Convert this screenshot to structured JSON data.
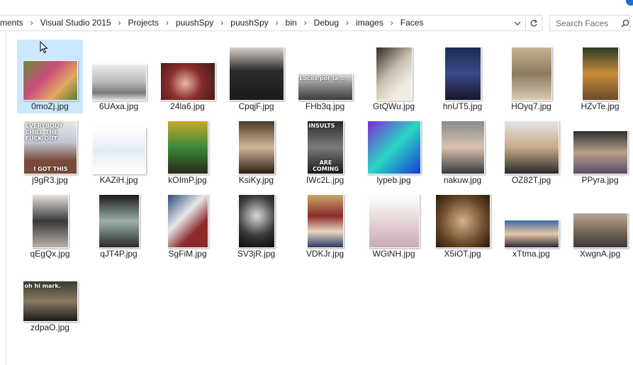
{
  "breadcrumb": [
    "ments",
    "Visual Studio 2015",
    "Projects",
    "puushSpy",
    "puushSpy",
    "bin",
    "Debug",
    "images",
    "Faces"
  ],
  "search": {
    "placeholder": "Search Faces"
  },
  "icons": {
    "separator": "chevron-right-icon",
    "dropdown": "chevron-down-icon",
    "refresh": "refresh-icon",
    "search": "search-icon",
    "cursor": "mouse-pointer-icon"
  },
  "colors": {
    "selection": "#cce8ff",
    "help_badge": "#1a6fd3"
  },
  "files": [
    {
      "name": "0moZj.jpg",
      "selected": true
    },
    {
      "name": "6UAxa.jpg"
    },
    {
      "name": "24la6.jpg"
    },
    {
      "name": "CpqjF.jpg"
    },
    {
      "name": "FHb3q.jpg",
      "caption": "Locos por la ..."
    },
    {
      "name": "GtQWu.jpg"
    },
    {
      "name": "hnUT5.jpg"
    },
    {
      "name": "HOyq7.jpg"
    },
    {
      "name": "HZvTe.jpg"
    },
    {
      "name": "j9gR3.jpg",
      "caption": "EVERYBODY CHILL THE FUCK OUT",
      "caption2": "I GOT THIS"
    },
    {
      "name": "KAZiH.jpg"
    },
    {
      "name": "kOImP.jpg"
    },
    {
      "name": "KsiKy.jpg"
    },
    {
      "name": "IWc2L.jpg",
      "caption": "INSULTS",
      "caption2": "ARE COMING"
    },
    {
      "name": "lypeb.jpg"
    },
    {
      "name": "nakuw.jpg"
    },
    {
      "name": "OZ82T.jpg"
    },
    {
      "name": "PPyra.jpg"
    },
    {
      "name": "qEgQx.jpg"
    },
    {
      "name": "qJT4P.jpg"
    },
    {
      "name": "SgFiM.jpg"
    },
    {
      "name": "SV3jR.jpg"
    },
    {
      "name": "VDKJr.jpg"
    },
    {
      "name": "WGiNH.jpg"
    },
    {
      "name": "X5iOT.jpg"
    },
    {
      "name": "xTtma.jpg"
    },
    {
      "name": "XwgnA.jpg"
    },
    {
      "name": "zdpaO.jpg",
      "caption": "oh hi mark."
    }
  ]
}
